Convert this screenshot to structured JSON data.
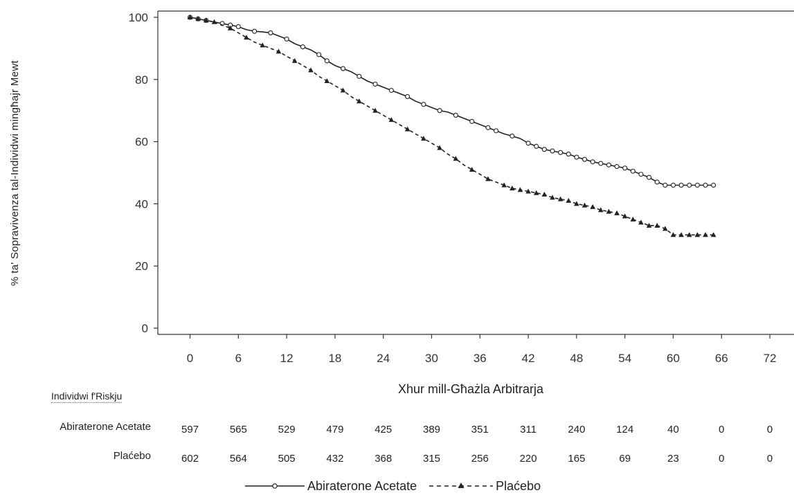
{
  "chart_data": {
    "type": "line",
    "ylabel": "% ta' Sopravivenza tal-Individwi mingħajr Mewt",
    "xlabel": "Xhur mill-Għażla Arbitrarja",
    "xlim": [
      -4,
      75
    ],
    "ylim": [
      -2,
      102
    ],
    "xticks": [
      0,
      6,
      12,
      18,
      24,
      30,
      36,
      42,
      48,
      54,
      60,
      66,
      72
    ],
    "yticks": [
      0,
      20,
      40,
      60,
      80,
      100
    ],
    "grid": false,
    "legend_position": "bottom-center",
    "series": [
      {
        "name": "Abiraterone Acetate",
        "style": "solid",
        "marker": "circle",
        "x": [
          0,
          1,
          2,
          3,
          4,
          5,
          6,
          7,
          8,
          9,
          10,
          11,
          12,
          13,
          14,
          15,
          16,
          17,
          18,
          19,
          20,
          21,
          22,
          23,
          24,
          25,
          26,
          27,
          28,
          29,
          30,
          31,
          32,
          33,
          34,
          35,
          36,
          37,
          38,
          39,
          40,
          41,
          42,
          43,
          44,
          45,
          46,
          47,
          48,
          49,
          50,
          51,
          52,
          53,
          54,
          55,
          56,
          57,
          58,
          59,
          60,
          61,
          62,
          63,
          64,
          65
        ],
        "y": [
          100,
          99.5,
          99,
          98.5,
          98,
          97.5,
          97,
          96,
          95.5,
          95.3,
          95,
          94,
          93,
          91.5,
          90.5,
          89.5,
          88,
          86,
          84.5,
          83.5,
          82.5,
          81,
          79.5,
          78.5,
          77.5,
          76.5,
          75.5,
          74.5,
          73,
          72,
          71,
          70,
          69.5,
          68.5,
          67.5,
          66.5,
          65.5,
          64.5,
          63.5,
          62.5,
          61.8,
          61,
          59.5,
          58.5,
          57.5,
          57,
          56.5,
          56,
          55,
          54.3,
          53.5,
          53,
          52.5,
          52,
          51.5,
          50.5,
          49.5,
          48.5,
          47,
          46,
          46,
          46,
          46,
          46,
          46,
          46
        ],
        "censor_x": [
          0,
          1,
          2,
          4,
          5,
          6,
          8,
          10,
          12,
          14,
          16,
          17,
          19,
          21,
          23,
          25,
          27,
          29,
          31,
          33,
          35,
          37,
          38,
          40,
          42,
          43,
          44,
          45,
          46,
          47,
          48,
          49,
          50,
          51,
          52,
          53,
          54,
          55,
          56,
          57,
          58,
          59,
          60,
          61,
          62,
          63,
          64,
          65
        ]
      },
      {
        "name": "Plaćebo",
        "style": "dashed",
        "marker": "triangle",
        "x": [
          0,
          1,
          2,
          3,
          4,
          5,
          6,
          7,
          8,
          9,
          10,
          11,
          12,
          13,
          14,
          15,
          16,
          17,
          18,
          19,
          20,
          21,
          22,
          23,
          24,
          25,
          26,
          27,
          28,
          29,
          30,
          31,
          32,
          33,
          34,
          35,
          36,
          37,
          38,
          39,
          40,
          41,
          42,
          43,
          44,
          45,
          46,
          47,
          48,
          49,
          50,
          51,
          52,
          53,
          54,
          55,
          56,
          57,
          58,
          59,
          60,
          61,
          62,
          63,
          64,
          65
        ],
        "y": [
          100,
          99.5,
          99,
          98.5,
          97.5,
          96.5,
          95,
          93.5,
          92,
          91,
          90,
          89,
          87.5,
          86,
          84.5,
          83,
          81,
          79.5,
          78,
          76.5,
          74.5,
          73,
          71.5,
          70,
          68.5,
          67,
          65.5,
          64,
          62.5,
          61,
          59.5,
          58,
          56,
          54.5,
          52.5,
          51,
          49.5,
          48,
          47,
          46,
          45,
          44.5,
          44,
          43.5,
          43,
          42,
          41.5,
          41,
          40,
          39.5,
          39,
          38,
          37.5,
          37,
          36,
          35,
          34,
          33,
          33,
          32,
          30,
          30,
          30,
          30,
          30,
          30
        ],
        "censor_x": [
          0,
          1,
          2,
          3,
          5,
          7,
          9,
          11,
          13,
          15,
          17,
          19,
          21,
          23,
          25,
          27,
          29,
          31,
          33,
          35,
          37,
          39,
          40,
          41,
          42,
          43,
          44,
          45,
          46,
          47,
          48,
          49,
          50,
          51,
          52,
          53,
          54,
          55,
          56,
          57,
          58,
          59,
          60,
          61,
          62,
          63,
          64,
          65
        ]
      }
    ]
  },
  "risk_table": {
    "title": "Individwi f'Riskju",
    "rows": [
      {
        "label": "Abiraterone Acetate",
        "values": [
          "597",
          "565",
          "529",
          "479",
          "425",
          "389",
          "351",
          "311",
          "240",
          "124",
          "40",
          "0",
          "0"
        ]
      },
      {
        "label": "Plaćebo",
        "values": [
          "602",
          "564",
          "505",
          "432",
          "368",
          "315",
          "256",
          "220",
          "165",
          "69",
          "23",
          "0",
          "0"
        ]
      }
    ]
  },
  "legend": {
    "series1_label": "Abiraterone Acetate",
    "series2_label": "Plaćebo"
  },
  "colors": {
    "line": "#222222",
    "axis": "#333333"
  }
}
